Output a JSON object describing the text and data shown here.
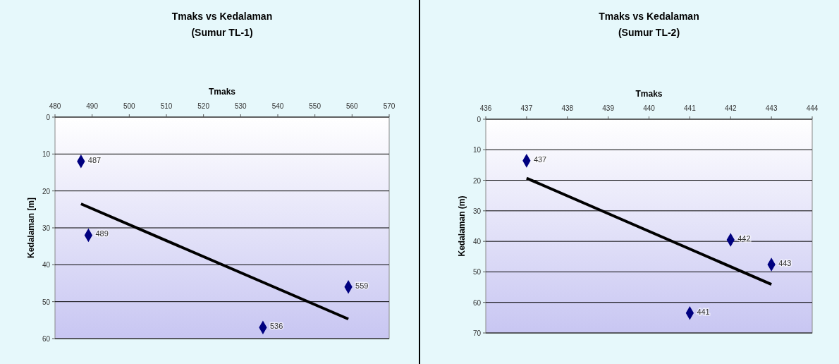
{
  "chart_data": [
    {
      "type": "scatter",
      "title": "Tmaks vs Kedalaman",
      "subtitle": "(Sumur TL-1)",
      "xlabel": "Tmaks",
      "ylabel": "Kedalaman [m]",
      "xlim": [
        480,
        570
      ],
      "xticks": [
        480,
        490,
        500,
        510,
        520,
        530,
        540,
        550,
        560,
        570
      ],
      "ylim": [
        60,
        0
      ],
      "yticks": [
        0,
        10,
        20,
        30,
        40,
        50,
        60
      ],
      "grid": "y",
      "annotations": [
        {
          "text": "487",
          "x": 487,
          "y": 12
        },
        {
          "text": "489",
          "x": 489,
          "y": 32
        },
        {
          "text": "536",
          "x": 536,
          "y": 57
        },
        {
          "text": "559",
          "x": 559,
          "y": 46
        }
      ],
      "series": [
        {
          "color": "#000080",
          "marker": "diamond",
          "x": [
            487,
            489,
            536,
            559
          ],
          "values": [
            12,
            32,
            57,
            46
          ]
        },
        {
          "type": "line",
          "color": "#000000",
          "x": [
            487,
            559
          ],
          "values": [
            23.5,
            54.7
          ]
        }
      ]
    },
    {
      "type": "scatter",
      "title": "Tmaks vs Kedalaman",
      "subtitle": "(Sumur TL-2)",
      "xlabel": "Tmaks",
      "ylabel": "Kedalaman (m)",
      "xlim": [
        436,
        444
      ],
      "xticks": [
        436,
        437,
        438,
        439,
        440,
        441,
        442,
        443,
        444
      ],
      "ylim": [
        70,
        0
      ],
      "yticks": [
        0,
        10,
        20,
        30,
        40,
        50,
        60,
        70
      ],
      "grid": "y",
      "annotations": [
        {
          "text": "437",
          "x": 437,
          "y": 13.6
        },
        {
          "text": "442",
          "x": 442,
          "y": 39.5
        },
        {
          "text": "443",
          "x": 443,
          "y": 47.6
        },
        {
          "text": "441",
          "x": 441,
          "y": 63.5
        }
      ],
      "series": [
        {
          "color": "#000080",
          "marker": "diamond",
          "x": [
            437,
            442,
            443,
            441
          ],
          "values": [
            13.6,
            39.5,
            47.6,
            63.5
          ]
        },
        {
          "type": "line",
          "color": "#000000",
          "x": [
            437,
            443
          ],
          "values": [
            19.3,
            54.1
          ]
        }
      ]
    }
  ]
}
